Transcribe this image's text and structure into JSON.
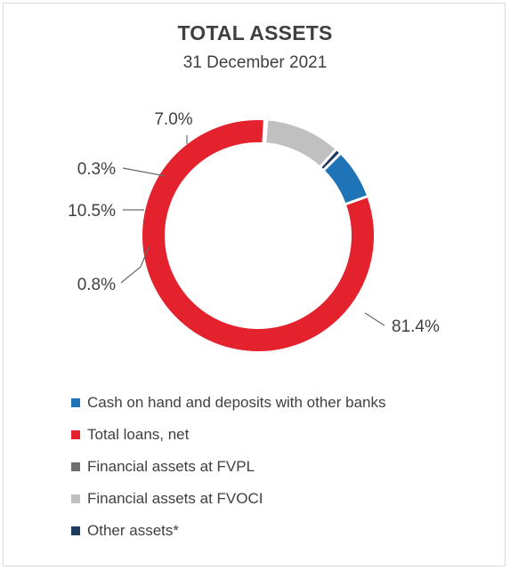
{
  "chart_data": {
    "type": "pie",
    "variant": "donut",
    "title": "TOTAL ASSETS",
    "subtitle": "31 December 2021",
    "value_format": "percent",
    "categories": [
      "Cash on hand and deposits with other banks",
      "Total loans, net",
      "Financial assets at FVPL",
      "Financial assets at FVOCI",
      "Other assets*"
    ],
    "values": [
      7.0,
      81.4,
      0.3,
      10.5,
      0.8
    ],
    "data_labels": [
      "7.0%",
      "81.4%",
      "0.3%",
      "10.5%",
      "0.8%"
    ],
    "colors": [
      "#1f73b7",
      "#e3222e",
      "#6f6f6f",
      "#c0c0c0",
      "#1d3b5c"
    ],
    "legend_position": "bottom",
    "start_angle_deg": 45,
    "direction": "clockwise"
  }
}
